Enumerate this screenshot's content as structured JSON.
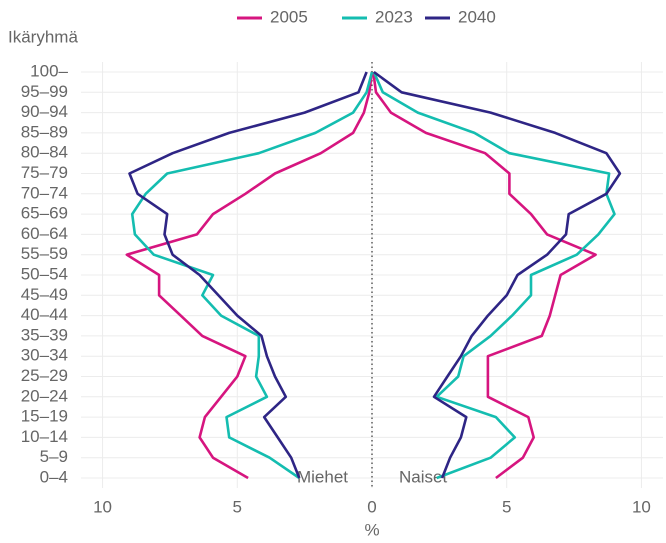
{
  "chart_data": {
    "type": "pyramid-line",
    "y_label": "Ikäryhmä",
    "x_label": "%",
    "annotations": [
      "Miehet",
      "Naiset"
    ],
    "categories": [
      "0–4",
      "5–9",
      "10–14",
      "15–19",
      "20–24",
      "25–29",
      "30–34",
      "35–39",
      "40–44",
      "45–49",
      "50–54",
      "55–59",
      "60–64",
      "65–69",
      "70–74",
      "75–79",
      "80–84",
      "85–89",
      "90–94",
      "95–99",
      "100–"
    ],
    "series": [
      {
        "name": "2005",
        "color": "#d6157f",
        "miehet": [
          -4.6,
          -5.9,
          -6.4,
          -6.2,
          -5.6,
          -5.0,
          -4.7,
          -6.3,
          -7.1,
          -7.9,
          -7.9,
          -9.1,
          -6.5,
          -5.9,
          -4.7,
          -3.6,
          -1.9,
          -0.7,
          -0.3,
          -0.1,
          0
        ],
        "naiset": [
          4.6,
          5.6,
          6.0,
          5.8,
          4.3,
          4.3,
          4.3,
          6.3,
          6.6,
          6.8,
          7.0,
          8.3,
          6.5,
          5.9,
          5.1,
          5.1,
          4.2,
          2.0,
          0.7,
          0.15,
          0.05
        ]
      },
      {
        "name": "2023",
        "color": "#14bdb0",
        "miehet": [
          -2.7,
          -3.8,
          -5.3,
          -5.4,
          -3.9,
          -4.3,
          -4.2,
          -4.2,
          -5.6,
          -6.3,
          -5.9,
          -8.1,
          -8.8,
          -8.9,
          -8.4,
          -7.6,
          -4.2,
          -2.1,
          -0.7,
          -0.2,
          0
        ],
        "naiset": [
          2.4,
          4.4,
          5.3,
          4.6,
          2.4,
          3.2,
          3.4,
          4.4,
          5.2,
          5.9,
          5.9,
          7.6,
          8.4,
          9.0,
          8.7,
          8.8,
          5.1,
          3.8,
          1.7,
          0.4,
          0.07
        ]
      },
      {
        "name": "2040",
        "color": "#2e2585",
        "miehet": [
          -2.7,
          -3.0,
          -3.5,
          -4.0,
          -3.2,
          -3.6,
          -3.9,
          -4.1,
          -5.0,
          -5.7,
          -6.4,
          -7.4,
          -7.7,
          -7.6,
          -8.7,
          -9.0,
          -7.4,
          -5.3,
          -2.5,
          -0.5,
          -0.2
        ],
        "naiset": [
          2.6,
          2.9,
          3.3,
          3.5,
          2.3,
          2.8,
          3.3,
          3.7,
          4.3,
          5.0,
          5.4,
          6.5,
          7.2,
          7.3,
          8.7,
          9.2,
          8.7,
          6.8,
          4.4,
          1.1,
          0.07
        ]
      }
    ],
    "xlim": [
      -10.8,
      10.8
    ],
    "xticks": [
      {
        "value": -10,
        "label": "10"
      },
      {
        "value": -5,
        "label": "5"
      },
      0,
      5,
      10
    ],
    "grid": true,
    "legend": "top"
  }
}
